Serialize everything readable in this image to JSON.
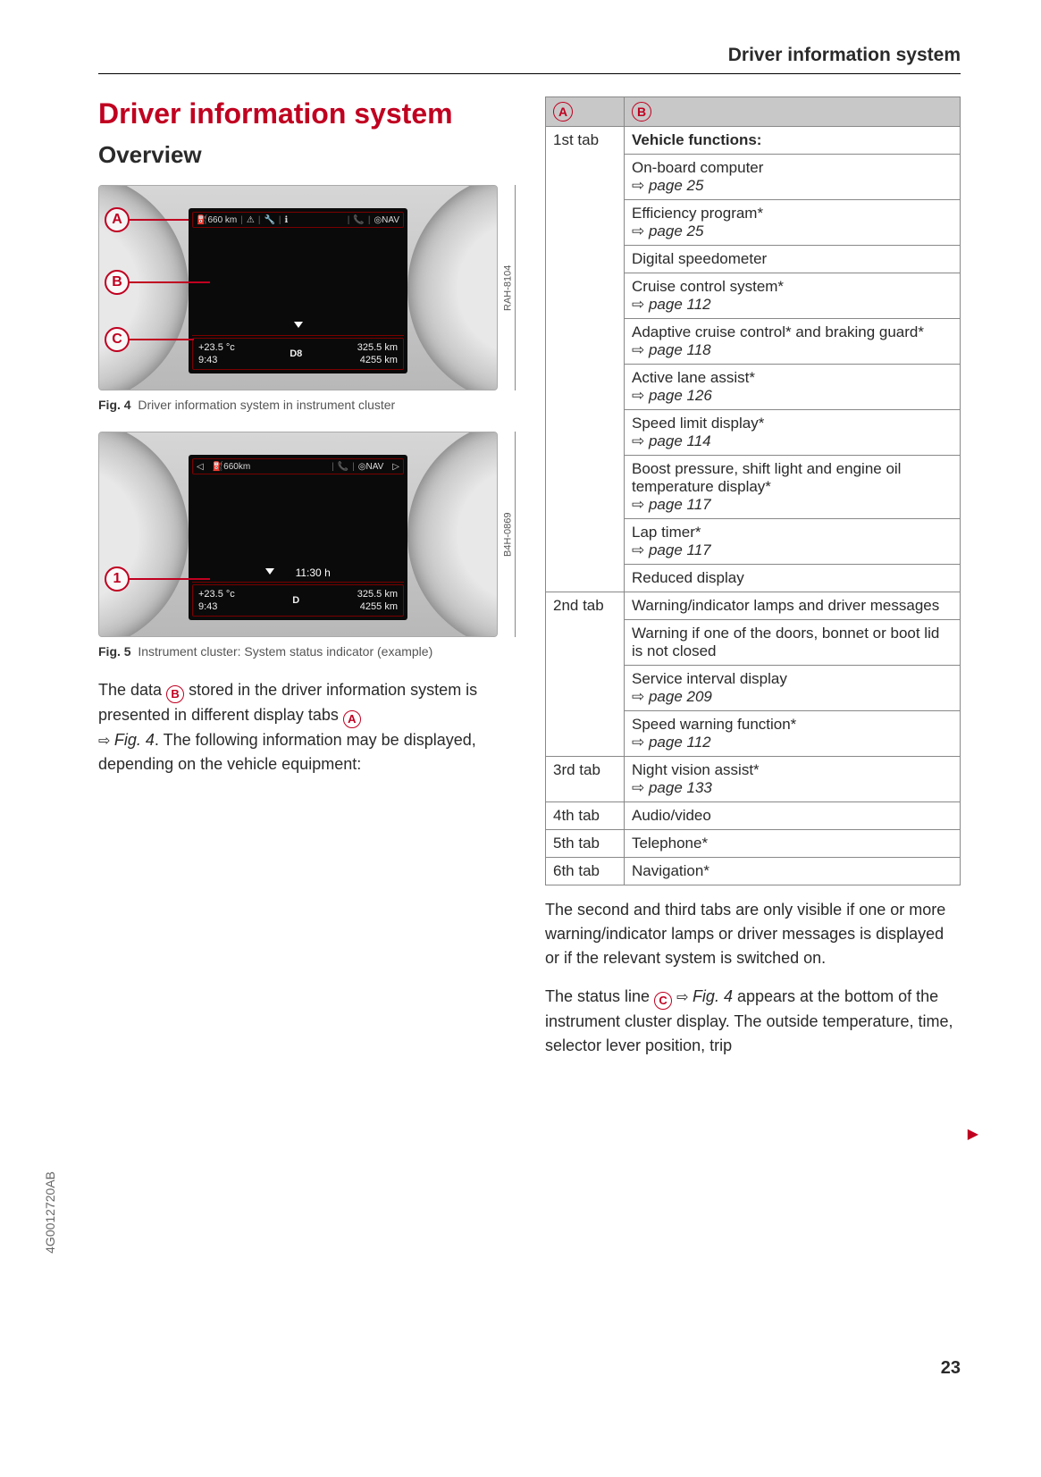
{
  "header": {
    "title": "Driver information system"
  },
  "headings": {
    "main": "Driver information system",
    "overview": "Overview"
  },
  "fig4": {
    "code": "RAH-8104",
    "tabbar": {
      "range": "660 km",
      "nav": "NAV"
    },
    "status": {
      "temp": "+23.5 °c",
      "time": "9:43",
      "gear": "D8",
      "dist1": "325.5 km",
      "dist2": "4255 km"
    },
    "caption_label": "Fig. 4",
    "caption": "Driver information system in instrument cluster",
    "callouts": {
      "a": "A",
      "b": "B",
      "c": "C"
    }
  },
  "fig5": {
    "code": "B4H-0869",
    "tabbar": {
      "range": "660km",
      "nav": "NAV"
    },
    "mid": "11:30 h",
    "status": {
      "temp": "+23.5 °c",
      "time": "9:43",
      "gear": "D",
      "dist1": "325.5 km",
      "dist2": "4255 km"
    },
    "caption_label": "Fig. 5",
    "caption": "Instrument cluster: System status indicator (example)",
    "callouts": {
      "one": "1"
    }
  },
  "intro": {
    "p1a": "The data ",
    "p1_badge": "B",
    "p1b": " stored in the driver information system is presented in different display tabs ",
    "p1_badge2": "A",
    "p1c": " ",
    "p1_figref": "Fig. 4",
    "p1d": ". The following information may be displayed, depending on the vehicle equipment:"
  },
  "table": {
    "headA": "A",
    "headB": "B",
    "rows": [
      {
        "tab": "1st tab",
        "cells": [
          {
            "text": "Vehicle functions:",
            "bold": true
          },
          {
            "text": "On-board computer",
            "page": "page 25"
          },
          {
            "text": "Efficiency program*",
            "page": "page 25"
          },
          {
            "text": "Digital speedometer"
          },
          {
            "text": "Cruise control system*",
            "page": "page 112"
          },
          {
            "text": "Adaptive cruise control* and braking guard*",
            "page": "page 118"
          },
          {
            "text": "Active lane assist*",
            "page": "page 126"
          },
          {
            "text": "Speed limit display*",
            "page": "page 114"
          },
          {
            "text": "Boost pressure, shift light and engine oil temperature display*",
            "page": "page 117"
          },
          {
            "text": "Lap timer*",
            "page": "page 117"
          },
          {
            "text": "Reduced display"
          }
        ]
      },
      {
        "tab": "2nd tab",
        "cells": [
          {
            "text": "Warning/indicator lamps and driver messages"
          },
          {
            "text": "Warning if one of the doors, bonnet or boot lid is not closed"
          },
          {
            "text": "Service interval display",
            "page": "page 209"
          },
          {
            "text": "Speed warning function*",
            "page": "page 112"
          }
        ]
      },
      {
        "tab": "3rd tab",
        "cells": [
          {
            "text": "Night vision assist*",
            "page": "page 133"
          }
        ]
      },
      {
        "tab": "4th tab",
        "cells": [
          {
            "text": "Audio/video"
          }
        ]
      },
      {
        "tab": "5th tab",
        "cells": [
          {
            "text": "Telephone*"
          }
        ]
      },
      {
        "tab": "6th tab",
        "cells": [
          {
            "text": "Navigation*"
          }
        ]
      }
    ]
  },
  "closing": {
    "p1": "The second and third tabs are only visible if one or more warning/indicator lamps or driver messages is displayed or if the relevant system is switched on.",
    "p2a": "The status line ",
    "p2_badge": "C",
    "p2b": " ",
    "p2_figref": "Fig. 4",
    "p2c": " appears at the bottom of the instrument cluster display. The outside temperature, time, selector lever position, trip"
  },
  "doc_code": "4G0012720AB",
  "page_number": "23",
  "colors": {
    "accent": "#c00020",
    "border": "#888888",
    "header_bg": "#c8c8c8"
  }
}
